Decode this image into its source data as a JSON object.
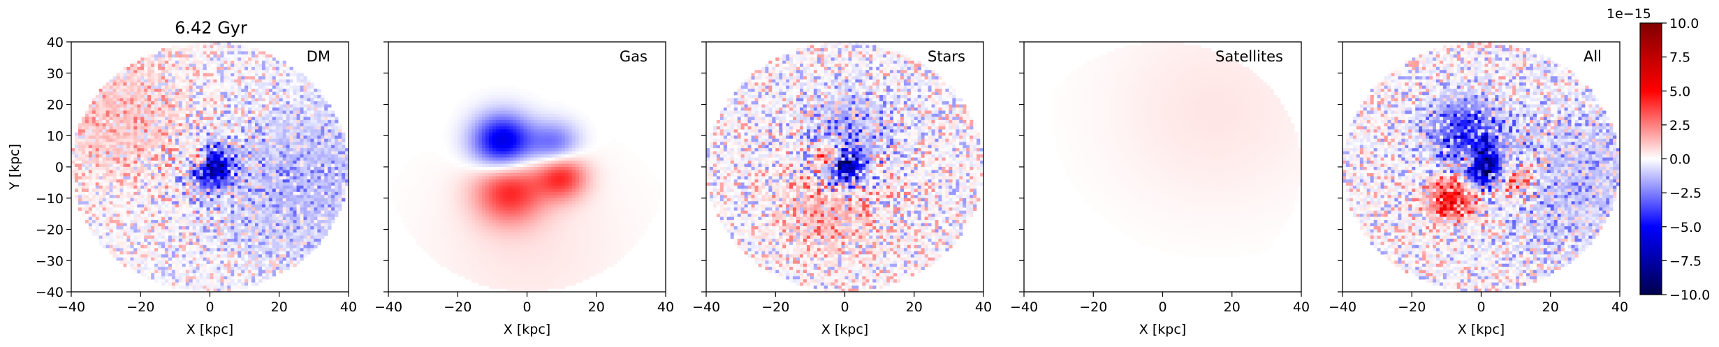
{
  "figure": {
    "time_label": "6.42 Gyr"
  },
  "chart_data": [
    {
      "type": "heatmap",
      "panel_label": "DM",
      "xlabel": "X [kpc]",
      "ylabel": "Y [kpc]",
      "xlim": [
        -40,
        40
      ],
      "ylim": [
        -40,
        40
      ],
      "xticks": [
        -40,
        -20,
        0,
        20,
        40
      ],
      "yticks": [
        -40,
        -30,
        -20,
        -10,
        0,
        10,
        20,
        30,
        40
      ],
      "aperture_radius_kpc": 40,
      "features": [
        {
          "x": 0,
          "y": 0,
          "sigma": 4,
          "amp": -9
        },
        {
          "x": -3,
          "y": 2,
          "sigma": 2.5,
          "amp": 6
        },
        {
          "x": -25,
          "y": 15,
          "sigma": 15,
          "amp": 1.2
        },
        {
          "x": 25,
          "y": -5,
          "sigma": 18,
          "amp": -1.4
        }
      ],
      "noise_amplitude": 2.5
    },
    {
      "type": "heatmap",
      "panel_label": "Gas",
      "xlabel": "X [kpc]",
      "ylabel": "",
      "xlim": [
        -40,
        40
      ],
      "ylim": [
        -40,
        40
      ],
      "xticks": [
        -40,
        -20,
        0,
        20,
        40
      ],
      "yticks": [
        -40,
        -30,
        -20,
        -10,
        0,
        10,
        20,
        30,
        40
      ],
      "aperture_radius_kpc": 40,
      "features": [
        {
          "x": -7,
          "y": 8,
          "sigma": 6,
          "amp": -6
        },
        {
          "x": 8,
          "y": 7,
          "sigma": 5,
          "amp": -3
        },
        {
          "x": -5,
          "y": -8,
          "sigma": 7,
          "amp": 4
        },
        {
          "x": 10,
          "y": -3,
          "sigma": 5,
          "amp": 4
        },
        {
          "x": 0,
          "y": -25,
          "sigma": 20,
          "amp": 0.5
        }
      ],
      "noise_amplitude": 0
    },
    {
      "type": "heatmap",
      "panel_label": "Stars",
      "xlabel": "X [kpc]",
      "ylabel": "",
      "xlim": [
        -40,
        40
      ],
      "ylim": [
        -40,
        40
      ],
      "xticks": [
        -40,
        -20,
        0,
        20,
        40
      ],
      "yticks": [
        -40,
        -30,
        -20,
        -10,
        0,
        10,
        20,
        30,
        40
      ],
      "aperture_radius_kpc": 40,
      "features": [
        {
          "x": 0,
          "y": 0,
          "sigma": 4,
          "amp": -8
        },
        {
          "x": -4,
          "y": 3,
          "sigma": 3,
          "amp": 5
        },
        {
          "x": 2,
          "y": 13,
          "sigma": 9,
          "amp": -1.6
        },
        {
          "x": -5,
          "y": -14,
          "sigma": 10,
          "amp": 1.4
        }
      ],
      "noise_amplitude": 3
    },
    {
      "type": "heatmap",
      "panel_label": "Satellites",
      "xlabel": "X [kpc]",
      "ylabel": "",
      "xlim": [
        -40,
        40
      ],
      "ylim": [
        -40,
        40
      ],
      "xticks": [
        -40,
        -20,
        0,
        20,
        40
      ],
      "yticks": [
        -40,
        -30,
        -20,
        -10,
        0,
        10,
        20,
        30,
        40
      ],
      "aperture_radius_kpc": 40,
      "features": [
        {
          "x": 15,
          "y": 18,
          "sigma": 22,
          "amp": 0.5
        }
      ],
      "noise_amplitude": 0
    },
    {
      "type": "heatmap",
      "panel_label": "All",
      "xlabel": "X [kpc]",
      "ylabel": "",
      "xlim": [
        -40,
        40
      ],
      "ylim": [
        -40,
        40
      ],
      "xticks": [
        -40,
        -20,
        0,
        20,
        40
      ],
      "yticks": [
        -40,
        -30,
        -20,
        -10,
        0,
        10,
        20,
        30,
        40
      ],
      "aperture_radius_kpc": 40,
      "features": [
        {
          "x": 0,
          "y": 0,
          "sigma": 4,
          "amp": -9
        },
        {
          "x": -3,
          "y": 2,
          "sigma": 2.5,
          "amp": 6
        },
        {
          "x": -5,
          "y": 11,
          "sigma": 7,
          "amp": -4
        },
        {
          "x": -8,
          "y": -10,
          "sigma": 5,
          "amp": 5
        },
        {
          "x": 10,
          "y": -4,
          "sigma": 4,
          "amp": 3
        },
        {
          "x": 25,
          "y": -5,
          "sigma": 18,
          "amp": -1.2
        }
      ],
      "noise_amplitude": 3
    }
  ],
  "colorbar": {
    "colormap": "seismic",
    "scale_label": "1e−15",
    "vmin": -10.0,
    "vmax": 10.0,
    "ticks": [
      "−10.0",
      "−7.5",
      "−5.0",
      "−2.5",
      "0.0",
      "2.5",
      "5.0",
      "7.5",
      "10.0"
    ],
    "tick_values": [
      -10.0,
      -7.5,
      -5.0,
      -2.5,
      0.0,
      2.5,
      5.0,
      7.5,
      10.0
    ],
    "colors": {
      "low": "#00004c",
      "mid_low": "#0000ff",
      "mid": "#ffffff",
      "mid_high": "#ff0000",
      "high": "#800000"
    }
  }
}
